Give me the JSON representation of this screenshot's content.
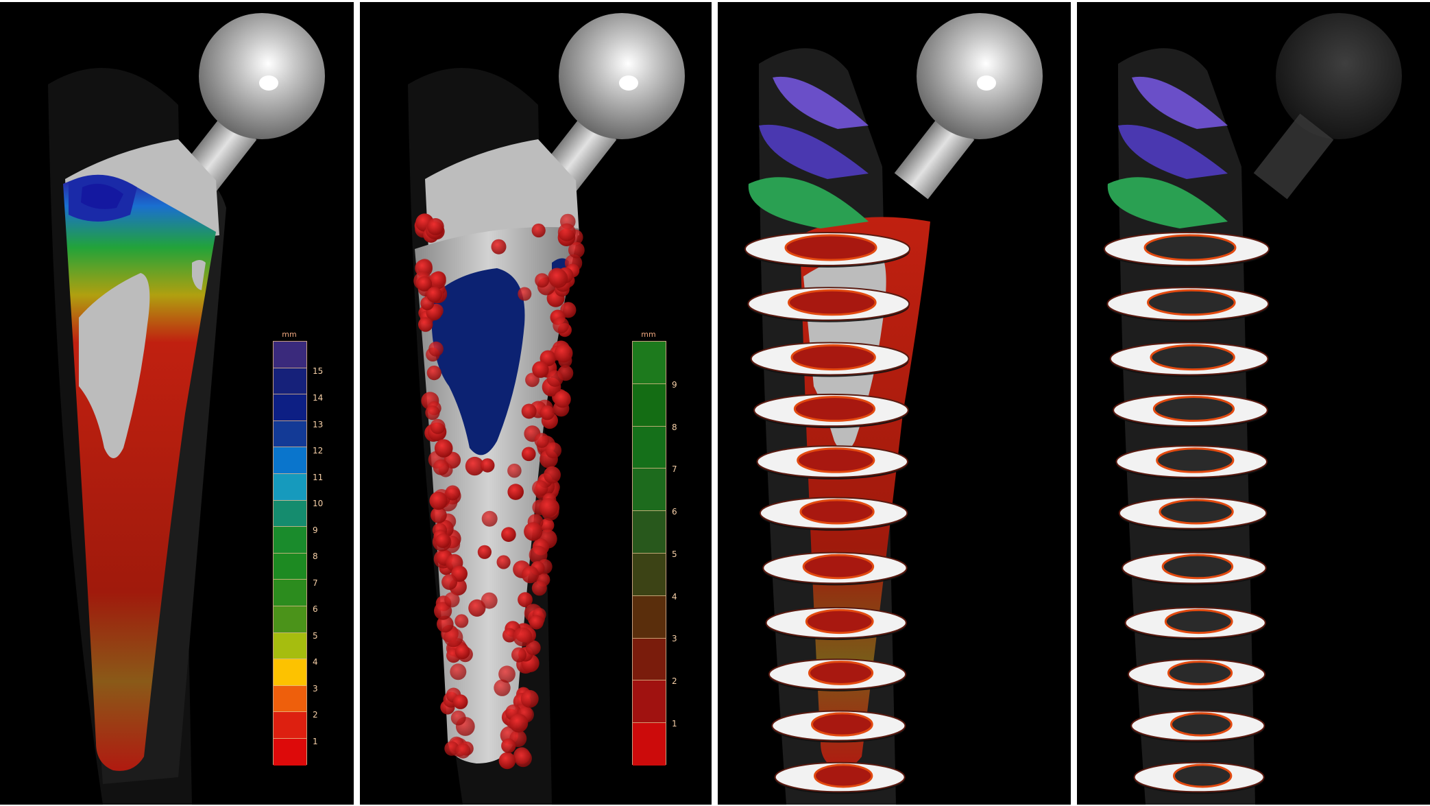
{
  "panels": [
    {
      "name": "thickness-colormap-panel"
    },
    {
      "name": "contact-points-panel"
    },
    {
      "name": "cross-sections-implant-panel"
    },
    {
      "name": "cross-sections-transparent-panel"
    }
  ],
  "scale_a": {
    "unit": "mm",
    "tick_labels": [
      "15",
      "14",
      "13",
      "12",
      "11",
      "10",
      "9",
      "8",
      "7",
      "6",
      "5",
      "4",
      "3",
      "2",
      "1"
    ],
    "colors": [
      "#3a2a7c",
      "#16217a",
      "#0d1f84",
      "#133a96",
      "#0a75cc",
      "#169abd",
      "#158c6e",
      "#1a8b2c",
      "#1d8a22",
      "#2c8c1e",
      "#4b931a",
      "#a6bd0f",
      "#fdc200",
      "#ee5f0c",
      "#dd2010",
      "#dd0a0a"
    ]
  },
  "scale_b": {
    "unit": "mm",
    "tick_labels": [
      "9",
      "8",
      "7",
      "6",
      "5",
      "4",
      "3",
      "2",
      "1"
    ],
    "colors": [
      "#1d7a1d",
      "#146d14",
      "#15701a",
      "#1d6b1d",
      "#28581c",
      "#3c4315",
      "#5a2e0c",
      "#7a1c0c",
      "#a01210",
      "#cc0b0b"
    ]
  }
}
